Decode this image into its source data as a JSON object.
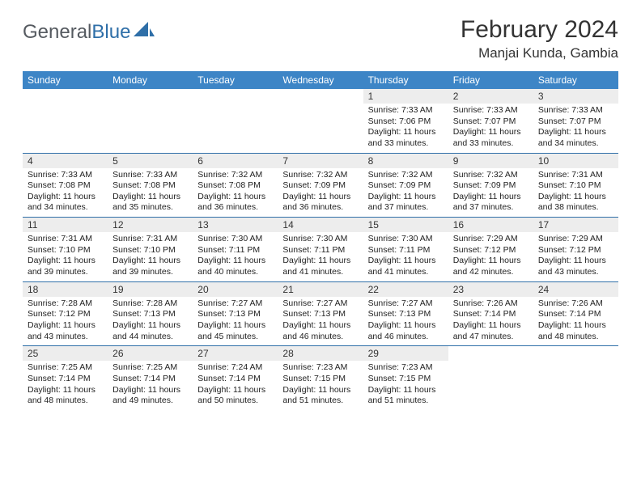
{
  "brand": {
    "text1": "General",
    "text2": "Blue"
  },
  "title": "February 2024",
  "location": "Manjai Kunda, Gambia",
  "colors": {
    "header_bg": "#3d85c6",
    "header_text": "#ffffff",
    "row_divider": "#2f6fa8",
    "daynum_bg": "#ededed",
    "page_bg": "#ffffff",
    "text": "#222222"
  },
  "typography": {
    "body_fontsize": 10.5,
    "title_fontsize": 30,
    "location_fontsize": 17
  },
  "layout": {
    "columns": 7,
    "rows": 5
  },
  "dow": [
    "Sunday",
    "Monday",
    "Tuesday",
    "Wednesday",
    "Thursday",
    "Friday",
    "Saturday"
  ],
  "weeks": [
    [
      {
        "n": "",
        "sr": "",
        "ss": "",
        "dl": ""
      },
      {
        "n": "",
        "sr": "",
        "ss": "",
        "dl": ""
      },
      {
        "n": "",
        "sr": "",
        "ss": "",
        "dl": ""
      },
      {
        "n": "",
        "sr": "",
        "ss": "",
        "dl": ""
      },
      {
        "n": "1",
        "sr": "Sunrise: 7:33 AM",
        "ss": "Sunset: 7:06 PM",
        "dl": "Daylight: 11 hours and 33 minutes."
      },
      {
        "n": "2",
        "sr": "Sunrise: 7:33 AM",
        "ss": "Sunset: 7:07 PM",
        "dl": "Daylight: 11 hours and 33 minutes."
      },
      {
        "n": "3",
        "sr": "Sunrise: 7:33 AM",
        "ss": "Sunset: 7:07 PM",
        "dl": "Daylight: 11 hours and 34 minutes."
      }
    ],
    [
      {
        "n": "4",
        "sr": "Sunrise: 7:33 AM",
        "ss": "Sunset: 7:08 PM",
        "dl": "Daylight: 11 hours and 34 minutes."
      },
      {
        "n": "5",
        "sr": "Sunrise: 7:33 AM",
        "ss": "Sunset: 7:08 PM",
        "dl": "Daylight: 11 hours and 35 minutes."
      },
      {
        "n": "6",
        "sr": "Sunrise: 7:32 AM",
        "ss": "Sunset: 7:08 PM",
        "dl": "Daylight: 11 hours and 36 minutes."
      },
      {
        "n": "7",
        "sr": "Sunrise: 7:32 AM",
        "ss": "Sunset: 7:09 PM",
        "dl": "Daylight: 11 hours and 36 minutes."
      },
      {
        "n": "8",
        "sr": "Sunrise: 7:32 AM",
        "ss": "Sunset: 7:09 PM",
        "dl": "Daylight: 11 hours and 37 minutes."
      },
      {
        "n": "9",
        "sr": "Sunrise: 7:32 AM",
        "ss": "Sunset: 7:09 PM",
        "dl": "Daylight: 11 hours and 37 minutes."
      },
      {
        "n": "10",
        "sr": "Sunrise: 7:31 AM",
        "ss": "Sunset: 7:10 PM",
        "dl": "Daylight: 11 hours and 38 minutes."
      }
    ],
    [
      {
        "n": "11",
        "sr": "Sunrise: 7:31 AM",
        "ss": "Sunset: 7:10 PM",
        "dl": "Daylight: 11 hours and 39 minutes."
      },
      {
        "n": "12",
        "sr": "Sunrise: 7:31 AM",
        "ss": "Sunset: 7:10 PM",
        "dl": "Daylight: 11 hours and 39 minutes."
      },
      {
        "n": "13",
        "sr": "Sunrise: 7:30 AM",
        "ss": "Sunset: 7:11 PM",
        "dl": "Daylight: 11 hours and 40 minutes."
      },
      {
        "n": "14",
        "sr": "Sunrise: 7:30 AM",
        "ss": "Sunset: 7:11 PM",
        "dl": "Daylight: 11 hours and 41 minutes."
      },
      {
        "n": "15",
        "sr": "Sunrise: 7:30 AM",
        "ss": "Sunset: 7:11 PM",
        "dl": "Daylight: 11 hours and 41 minutes."
      },
      {
        "n": "16",
        "sr": "Sunrise: 7:29 AM",
        "ss": "Sunset: 7:12 PM",
        "dl": "Daylight: 11 hours and 42 minutes."
      },
      {
        "n": "17",
        "sr": "Sunrise: 7:29 AM",
        "ss": "Sunset: 7:12 PM",
        "dl": "Daylight: 11 hours and 43 minutes."
      }
    ],
    [
      {
        "n": "18",
        "sr": "Sunrise: 7:28 AM",
        "ss": "Sunset: 7:12 PM",
        "dl": "Daylight: 11 hours and 43 minutes."
      },
      {
        "n": "19",
        "sr": "Sunrise: 7:28 AM",
        "ss": "Sunset: 7:13 PM",
        "dl": "Daylight: 11 hours and 44 minutes."
      },
      {
        "n": "20",
        "sr": "Sunrise: 7:27 AM",
        "ss": "Sunset: 7:13 PM",
        "dl": "Daylight: 11 hours and 45 minutes."
      },
      {
        "n": "21",
        "sr": "Sunrise: 7:27 AM",
        "ss": "Sunset: 7:13 PM",
        "dl": "Daylight: 11 hours and 46 minutes."
      },
      {
        "n": "22",
        "sr": "Sunrise: 7:27 AM",
        "ss": "Sunset: 7:13 PM",
        "dl": "Daylight: 11 hours and 46 minutes."
      },
      {
        "n": "23",
        "sr": "Sunrise: 7:26 AM",
        "ss": "Sunset: 7:14 PM",
        "dl": "Daylight: 11 hours and 47 minutes."
      },
      {
        "n": "24",
        "sr": "Sunrise: 7:26 AM",
        "ss": "Sunset: 7:14 PM",
        "dl": "Daylight: 11 hours and 48 minutes."
      }
    ],
    [
      {
        "n": "25",
        "sr": "Sunrise: 7:25 AM",
        "ss": "Sunset: 7:14 PM",
        "dl": "Daylight: 11 hours and 48 minutes."
      },
      {
        "n": "26",
        "sr": "Sunrise: 7:25 AM",
        "ss": "Sunset: 7:14 PM",
        "dl": "Daylight: 11 hours and 49 minutes."
      },
      {
        "n": "27",
        "sr": "Sunrise: 7:24 AM",
        "ss": "Sunset: 7:14 PM",
        "dl": "Daylight: 11 hours and 50 minutes."
      },
      {
        "n": "28",
        "sr": "Sunrise: 7:23 AM",
        "ss": "Sunset: 7:15 PM",
        "dl": "Daylight: 11 hours and 51 minutes."
      },
      {
        "n": "29",
        "sr": "Sunrise: 7:23 AM",
        "ss": "Sunset: 7:15 PM",
        "dl": "Daylight: 11 hours and 51 minutes."
      },
      {
        "n": "",
        "sr": "",
        "ss": "",
        "dl": ""
      },
      {
        "n": "",
        "sr": "",
        "ss": "",
        "dl": ""
      }
    ]
  ]
}
